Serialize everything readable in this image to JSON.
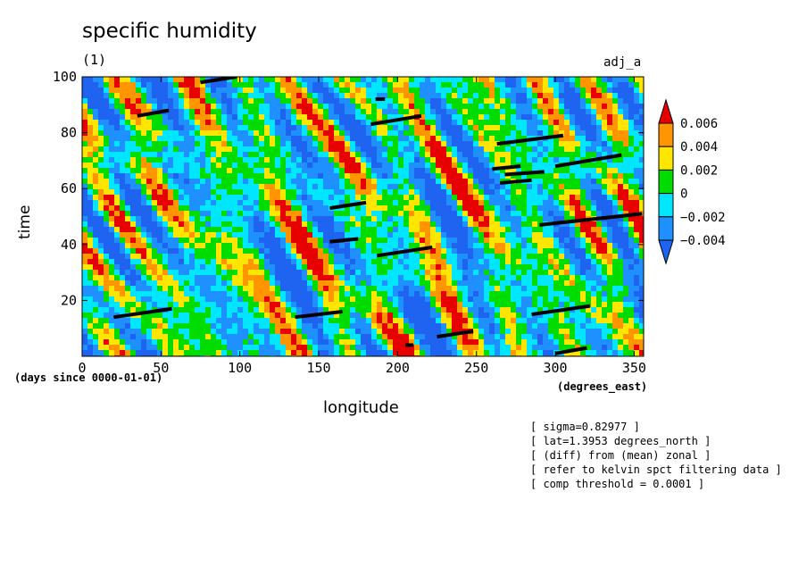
{
  "title": "specific humidity",
  "subtitle": "(1)",
  "run_label": "adj_a",
  "notes": [
    "[ sigma=0.82977 ]",
    "[ lat=1.3953 degrees_north ]",
    "[ (diff) from (mean) zonal ]",
    "[ refer to kelvin spct filtering data ]",
    "[ comp threshold = 0.0001 ]"
  ],
  "chart_data": {
    "type": "heatmap",
    "title": "specific humidity",
    "subtitle": "(1)",
    "xlabel": "longitude",
    "x_units": "(degrees_east)",
    "ylabel": "time",
    "y_units": "(days since 0000-01-01)",
    "xlim": [
      0,
      356
    ],
    "ylim": [
      0,
      100
    ],
    "x_ticks": [
      0,
      50,
      100,
      150,
      200,
      250,
      300,
      350
    ],
    "y_ticks": [
      20,
      40,
      60,
      80,
      100
    ],
    "colorbar": {
      "levels": [
        -0.004,
        -0.002,
        0,
        0.002,
        0.004,
        0.006
      ],
      "tick_labels": [
        "−0.004",
        "−0.002",
        "0",
        "0.002",
        "0.004",
        "0.006"
      ],
      "colors": [
        "#1e64f0",
        "#1e90ff",
        "#00e6ff",
        "#00dc00",
        "#ffe600",
        "#ff9600",
        "#e60000"
      ],
      "extend": "both"
    },
    "overlay_segments": [
      {
        "x": [
          20,
          57
        ],
        "y": [
          14,
          17
        ]
      },
      {
        "x": [
          75,
          98
        ],
        "y": [
          98,
          100
        ]
      },
      {
        "x": [
          35,
          55
        ],
        "y": [
          86,
          88
        ]
      },
      {
        "x": [
          135,
          165
        ],
        "y": [
          14,
          16
        ]
      },
      {
        "x": [
          157,
          180
        ],
        "y": [
          53,
          55
        ]
      },
      {
        "x": [
          157,
          175
        ],
        "y": [
          41,
          42
        ]
      },
      {
        "x": [
          183,
          215
        ],
        "y": [
          83,
          86
        ]
      },
      {
        "x": [
          186,
          192
        ],
        "y": [
          92,
          92
        ]
      },
      {
        "x": [
          187,
          222
        ],
        "y": [
          36,
          39
        ]
      },
      {
        "x": [
          205,
          210
        ],
        "y": [
          4,
          4
        ]
      },
      {
        "x": [
          225,
          248
        ],
        "y": [
          7,
          9
        ]
      },
      {
        "x": [
          263,
          305
        ],
        "y": [
          76,
          79
        ]
      },
      {
        "x": [
          260,
          278
        ],
        "y": [
          67,
          68
        ]
      },
      {
        "x": [
          265,
          285
        ],
        "y": [
          62,
          63
        ]
      },
      {
        "x": [
          268,
          293
        ],
        "y": [
          65,
          66
        ]
      },
      {
        "x": [
          300,
          342
        ],
        "y": [
          68,
          72
        ]
      },
      {
        "x": [
          290,
          355
        ],
        "y": [
          47,
          51
        ]
      },
      {
        "x": [
          285,
          322
        ],
        "y": [
          15,
          18
        ]
      },
      {
        "x": [
          300,
          320
        ],
        "y": [
          1,
          3
        ]
      }
    ]
  }
}
